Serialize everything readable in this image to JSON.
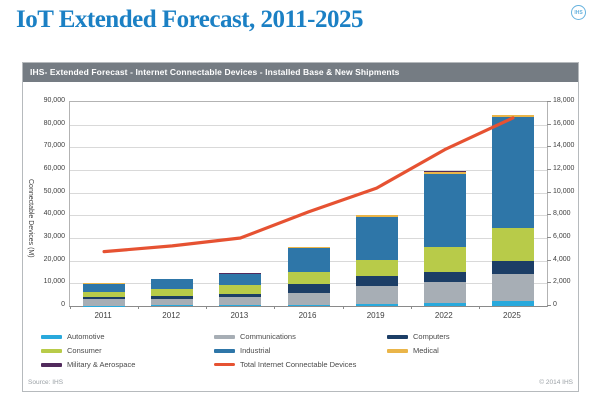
{
  "page": {
    "title": "IoT Extended Forecast, 2011-2025",
    "logo_text": "IHS",
    "title_color": "#1b80c4"
  },
  "panel": {
    "header": "IHS- Extended Forecast - Internet Connectable Devices - Installed Base & New Shipments",
    "header_bg": "#757c83",
    "footer_left": "Source: IHS",
    "footer_right": "© 2014 IHS"
  },
  "chart_data": {
    "type": "bar",
    "subtype": "stacked-bars-with-line-overlay-dual-axis",
    "title": "IHS- Extended Forecast - Internet Connectable Devices - Installed Base & New Shipments",
    "categories": [
      "2011",
      "2012",
      "2013",
      "2016",
      "2019",
      "2022",
      "2025"
    ],
    "left_axis": {
      "label": "Connectable Devices (M)",
      "min": 0,
      "max": 90000,
      "step": 10000,
      "tick_labels": [
        "90,000",
        "80,000",
        "70,000",
        "60,000",
        "50,000",
        "40,000",
        "30,000",
        "20,000",
        "10,000",
        "0"
      ]
    },
    "right_axis": {
      "min": 0,
      "max": 18000,
      "step": 2000,
      "tick_labels": [
        "18,000",
        "16,000",
        "14,000",
        "12,000",
        "10,000",
        "8,000",
        "6,000",
        "4,000",
        "2,000",
        "0"
      ]
    },
    "grid": true,
    "legend_position": "bottom",
    "series": [
      {
        "name": "Automotive",
        "color": "#29a9dc",
        "axis": "left",
        "values": [
          200,
          250,
          250,
          600,
          1000,
          1200,
          2000
        ]
      },
      {
        "name": "Communications",
        "color": "#a7aeb5",
        "axis": "left",
        "values": [
          2700,
          3000,
          3650,
          5300,
          7800,
          9400,
          12300
        ]
      },
      {
        "name": "Computers",
        "color": "#1c3e66",
        "axis": "left",
        "values": [
          1300,
          1100,
          1250,
          3600,
          4500,
          4400,
          5600
        ]
      },
      {
        "name": "Consumer",
        "color": "#b8cb49",
        "axis": "left",
        "values": [
          2000,
          3000,
          4000,
          5600,
          7100,
          11100,
          14700
        ]
      },
      {
        "name": "Industrial",
        "color": "#2e76a8",
        "axis": "left",
        "values": [
          3700,
          4500,
          5100,
          10700,
          18900,
          32300,
          48700
        ]
      },
      {
        "name": "Medical",
        "color": "#eab549",
        "axis": "left",
        "values": [
          80,
          100,
          100,
          400,
          700,
          900,
          1000
        ]
      },
      {
        "name": "Military & Aerospace",
        "color": "#512a5c",
        "axis": "left",
        "values": [
          30,
          30,
          40,
          50,
          60,
          80,
          100
        ]
      }
    ],
    "line_series": {
      "name": "Total Internet Connectable Devices",
      "color": "#e65232",
      "axis": "right",
      "values": [
        4800,
        5300,
        6000,
        8300,
        10400,
        13800,
        16600
      ],
      "values_left_axis_equivalent": [
        24000,
        26500,
        30000,
        41500,
        52000,
        69000,
        83000
      ]
    }
  }
}
